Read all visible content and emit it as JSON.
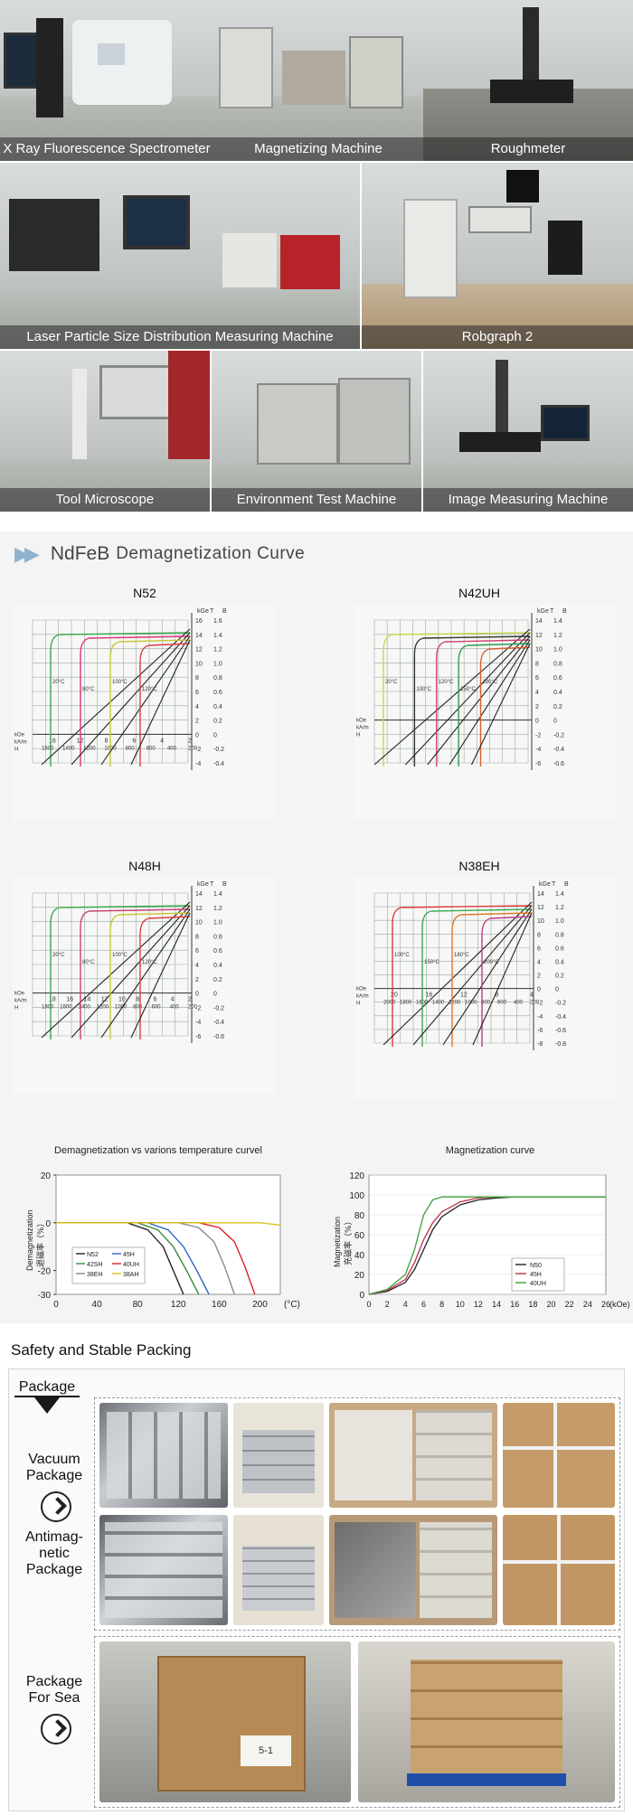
{
  "equipment": [
    {
      "caption": "X Ray Fluorescence Spectrometer"
    },
    {
      "caption": "Magnetizing Machine"
    },
    {
      "caption": "Roughmeter"
    },
    {
      "caption": "Laser Particle Size Distribution Measuring Machine"
    },
    {
      "caption": "Robgraph 2"
    },
    {
      "caption": "Tool Microscope"
    },
    {
      "caption": "Environment Test Machine"
    },
    {
      "caption": "Image Measuring Machine"
    }
  ],
  "curves_section": {
    "title_brand": "NdFeB",
    "title_rest": "Demagnetization Curve"
  },
  "demag_charts": [
    {
      "title": "N52",
      "xticks": [
        "16",
        "12",
        "8",
        "6",
        "4",
        "2"
      ],
      "xticks_sub": [
        "1600",
        "1400",
        "1200",
        "1000",
        "800",
        "600",
        "400",
        "200"
      ],
      "yleft": [
        "16",
        "14",
        "12",
        "10",
        "8",
        "6",
        "4",
        "2",
        "0",
        "-2",
        "-4"
      ],
      "yright": [
        "1.6",
        "1.4",
        "1.2",
        "1.0",
        "0.8",
        "0.6",
        "0.4",
        "0.2",
        "0",
        "-0.2",
        "-0.4"
      ],
      "axis_units": [
        "kOe",
        "kA/m",
        "H"
      ],
      "top_units": [
        "kGe",
        "T",
        "B"
      ],
      "temps": [
        "20°C",
        "80°C",
        "100°C",
        "120°C"
      ]
    },
    {
      "title": "N42UH",
      "xticks": [],
      "xticks_sub": [],
      "yleft": [
        "14",
        "12",
        "10",
        "8",
        "6",
        "4",
        "2",
        "0",
        "-2",
        "-4",
        "-6"
      ],
      "yright": [
        "1.4",
        "1.2",
        "1.0",
        "0.8",
        "0.6",
        "0.4",
        "0.2",
        "0",
        "-0.2",
        "-0.4",
        "-0.6"
      ],
      "axis_units": [
        "kOe",
        "kA/m",
        "H"
      ],
      "top_units": [
        "kGe",
        "T",
        "B"
      ],
      "temps": [
        "20°C",
        "100°C",
        "120°C",
        "150°C",
        "180°C"
      ]
    },
    {
      "title": "N48H",
      "xticks": [
        "18",
        "16",
        "14",
        "12",
        "10",
        "8",
        "6",
        "4",
        "2"
      ],
      "xticks_sub": [
        "1800",
        "1600",
        "1400",
        "1200",
        "1000",
        "800",
        "600",
        "400",
        "200"
      ],
      "yleft": [
        "14",
        "12",
        "10",
        "8",
        "6",
        "4",
        "2",
        "0",
        "-2",
        "-4",
        "-6"
      ],
      "yright": [
        "1.4",
        "1.2",
        "1.0",
        "0.8",
        "0.6",
        "0.4",
        "0.2",
        "0",
        "-0.2",
        "-0.4",
        "-0.6"
      ],
      "axis_units": [
        "kOe",
        "kA/m",
        "H"
      ],
      "top_units": [
        "kGe",
        "T",
        "B"
      ],
      "temps": [
        "20°C",
        "80°C",
        "100°C",
        "120°C"
      ]
    },
    {
      "title": "N38EH",
      "xticks": [
        "20",
        "16",
        "12",
        "8",
        "4"
      ],
      "xticks_sub": [
        "2000",
        "1800",
        "1600",
        "1400",
        "1200",
        "1000",
        "800",
        "600",
        "400",
        "200"
      ],
      "yleft": [
        "14",
        "12",
        "10",
        "8",
        "6",
        "4",
        "2",
        "0",
        "-2",
        "-4",
        "-6",
        "-8"
      ],
      "yright": [
        "1.4",
        "1.2",
        "1.0",
        "0.8",
        "0.6",
        "0.4",
        "0.2",
        "0",
        "-0.2",
        "-0.4",
        "-0.6",
        "-0.8"
      ],
      "axis_units": [
        "kOe",
        "kA/m",
        "H"
      ],
      "top_units": [
        "kGe",
        "T",
        "B"
      ],
      "temps": [
        "100°C",
        "150°C",
        "180°C",
        "200°C"
      ]
    }
  ],
  "chart_data": [
    {
      "type": "line",
      "title": "Demagnetization vs varions temperature curvel",
      "xlabel": "(°C)",
      "ylabel": "Demagnetization",
      "ylabel_cn": "退磁率（%）",
      "xlim": [
        0,
        220
      ],
      "ylim": [
        -30,
        20
      ],
      "xticks": [
        0,
        40,
        80,
        120,
        160,
        200
      ],
      "yticks": [
        20,
        0,
        -20,
        -30
      ],
      "legend": "bottom-left",
      "colors": {
        "N52": "#222222",
        "42SH": "#3a8a3a",
        "38EH": "#8a8a8a",
        "45H": "#2f63c8",
        "40UH": "#e02020",
        "38AH": "#d8c51a"
      },
      "series": [
        {
          "name": "N52",
          "x": [
            0,
            70,
            90,
            105,
            115,
            125
          ],
          "y": [
            0,
            0,
            -3,
            -10,
            -20,
            -30
          ]
        },
        {
          "name": "42SH",
          "x": [
            0,
            80,
            100,
            115,
            128,
            140
          ],
          "y": [
            0,
            0,
            -3,
            -10,
            -20,
            -30
          ]
        },
        {
          "name": "38EH",
          "x": [
            0,
            120,
            140,
            155,
            165,
            175
          ],
          "y": [
            0,
            0,
            -2,
            -8,
            -18,
            -30
          ]
        },
        {
          "name": "45H",
          "x": [
            0,
            90,
            110,
            125,
            138,
            150
          ],
          "y": [
            0,
            0,
            -3,
            -10,
            -20,
            -30
          ]
        },
        {
          "name": "40UH",
          "x": [
            0,
            140,
            160,
            175,
            185,
            195
          ],
          "y": [
            0,
            0,
            -2,
            -8,
            -18,
            -30
          ]
        },
        {
          "name": "38AH",
          "x": [
            0,
            200,
            210,
            220
          ],
          "y": [
            0,
            0,
            -0.5,
            -1
          ]
        }
      ]
    },
    {
      "type": "line",
      "title": "Magnetization curve",
      "xlabel": "(kOe)",
      "ylabel": "Magnetization",
      "ylabel_cn": "充磁率（%）",
      "xlim": [
        0,
        26
      ],
      "ylim": [
        0,
        120
      ],
      "xticks": [
        0,
        2,
        4,
        6,
        8,
        10,
        12,
        14,
        16,
        18,
        20,
        22,
        24,
        26
      ],
      "yticks": [
        0,
        20,
        40,
        60,
        80,
        100,
        120
      ],
      "legend": "bottom-right",
      "colors": {
        "N50": "#222222",
        "45H": "#c0304a",
        "40UH": "#3aa03a"
      },
      "series": [
        {
          "name": "N50",
          "x": [
            0,
            2,
            4,
            5,
            6,
            7,
            8,
            10,
            12,
            14,
            16,
            20,
            26
          ],
          "y": [
            0,
            3,
            12,
            25,
            45,
            65,
            78,
            90,
            95,
            97,
            98,
            98,
            98
          ]
        },
        {
          "name": "45H",
          "x": [
            0,
            2,
            4,
            5,
            6,
            7,
            8,
            10,
            12,
            14,
            16,
            20,
            26
          ],
          "y": [
            0,
            4,
            15,
            32,
            55,
            72,
            83,
            93,
            97,
            98,
            98,
            98,
            98
          ]
        },
        {
          "name": "40UH",
          "x": [
            0,
            2,
            4,
            5,
            6,
            7,
            8,
            10,
            12,
            16,
            20,
            26
          ],
          "y": [
            0,
            5,
            20,
            45,
            80,
            95,
            98,
            98,
            98,
            98,
            98,
            98
          ]
        }
      ]
    }
  ],
  "packing": {
    "section_title": "Safety and Stable Packing",
    "header_label": "Package",
    "rows": [
      {
        "label_lines": [
          "Vacuum",
          "Package"
        ]
      },
      {
        "label_lines": [
          "Antimag-",
          "netic",
          "Package"
        ]
      },
      {
        "label_lines": [
          "Package",
          "For Sea"
        ]
      }
    ],
    "box_label": "5-1"
  }
}
